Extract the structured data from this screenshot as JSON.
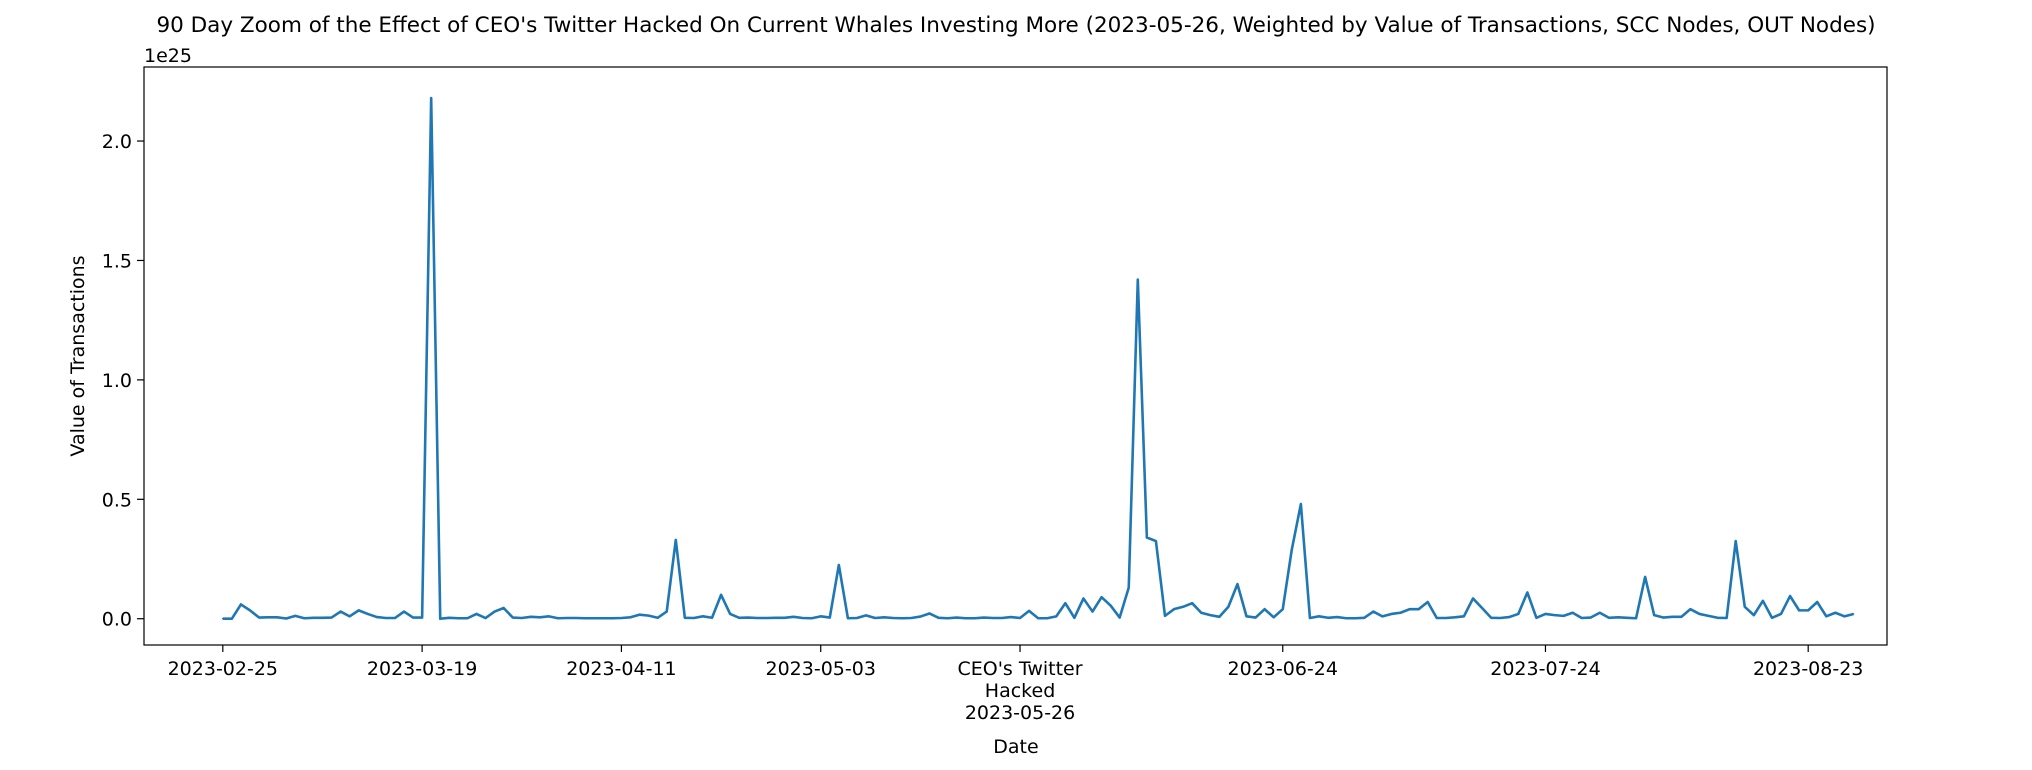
{
  "chart_data": {
    "type": "line",
    "title": "90 Day Zoom of the Effect of CEO's Twitter Hacked On Current Whales Investing More (2023-05-26, Weighted by Value of Transactions, SCC Nodes, OUT Nodes)",
    "xlabel": "Date",
    "ylabel": "Value of Transactions",
    "y_offset_label": "1e25",
    "ylim": [
      -0.11,
      2.31
    ],
    "xlim": [
      -8.7,
      183.7
    ],
    "grid": false,
    "series_color": "#1f77b4",
    "x_tick_labels": [
      {
        "x": 0,
        "label": "2023-02-25"
      },
      {
        "x": 22,
        "label": "2023-03-19"
      },
      {
        "x": 44,
        "label": "2023-04-11"
      },
      {
        "x": 66,
        "label": "2023-05-03"
      },
      {
        "x": 88,
        "label": "CEO's Twitter\nHacked\n2023-05-26"
      },
      {
        "x": 117,
        "label": "2023-06-24"
      },
      {
        "x": 146,
        "label": "2023-07-24"
      },
      {
        "x": 175,
        "label": "2023-08-23"
      }
    ],
    "y_tick_labels": [
      {
        "y": 0.0,
        "label": "0.0"
      },
      {
        "y": 0.5,
        "label": "0.5"
      },
      {
        "y": 1.0,
        "label": "1.0"
      },
      {
        "y": 1.5,
        "label": "1.5"
      },
      {
        "y": 2.0,
        "label": "2.0"
      }
    ],
    "series": [
      {
        "values": [
          0.0,
          0.0,
          0.06,
          0.035,
          0.005,
          0.006,
          0.006,
          0.001,
          0.012,
          0.002,
          0.004,
          0.004,
          0.005,
          0.03,
          0.01,
          0.035,
          0.02,
          0.007,
          0.003,
          0.003,
          0.03,
          0.005,
          0.005,
          2.18,
          0.0,
          0.004,
          0.002,
          0.002,
          0.02,
          0.003,
          0.03,
          0.045,
          0.005,
          0.003,
          0.008,
          0.006,
          0.01,
          0.002,
          0.003,
          0.003,
          0.002,
          0.002,
          0.002,
          0.002,
          0.003,
          0.006,
          0.017,
          0.013,
          0.004,
          0.03,
          0.33,
          0.004,
          0.003,
          0.01,
          0.004,
          0.1,
          0.02,
          0.004,
          0.005,
          0.003,
          0.003,
          0.004,
          0.004,
          0.008,
          0.003,
          0.002,
          0.01,
          0.005,
          0.225,
          0.002,
          0.003,
          0.014,
          0.003,
          0.006,
          0.003,
          0.002,
          0.003,
          0.009,
          0.022,
          0.004,
          0.002,
          0.005,
          0.002,
          0.002,
          0.005,
          0.003,
          0.003,
          0.007,
          0.003,
          0.033,
          0.002,
          0.002,
          0.01,
          0.065,
          0.004,
          0.085,
          0.03,
          0.09,
          0.055,
          0.005,
          0.13,
          1.42,
          0.34,
          0.325,
          0.012,
          0.04,
          0.05,
          0.065,
          0.025,
          0.015,
          0.008,
          0.05,
          0.145,
          0.01,
          0.005,
          0.04,
          0.006,
          0.04,
          0.29,
          0.48,
          0.003,
          0.01,
          0.004,
          0.007,
          0.002,
          0.002,
          0.004,
          0.03,
          0.01,
          0.02,
          0.025,
          0.04,
          0.04,
          0.07,
          0.003,
          0.003,
          0.006,
          0.01,
          0.085,
          0.045,
          0.004,
          0.003,
          0.007,
          0.02,
          0.11,
          0.004,
          0.02,
          0.015,
          0.012,
          0.025,
          0.003,
          0.005,
          0.025,
          0.004,
          0.006,
          0.004,
          0.002,
          0.175,
          0.015,
          0.005,
          0.008,
          0.008,
          0.04,
          0.02,
          0.012,
          0.004,
          0.003,
          0.325,
          0.05,
          0.015,
          0.075,
          0.004,
          0.02,
          0.095,
          0.035,
          0.035,
          0.07,
          0.01,
          0.025,
          0.01,
          0.02
        ]
      }
    ]
  }
}
